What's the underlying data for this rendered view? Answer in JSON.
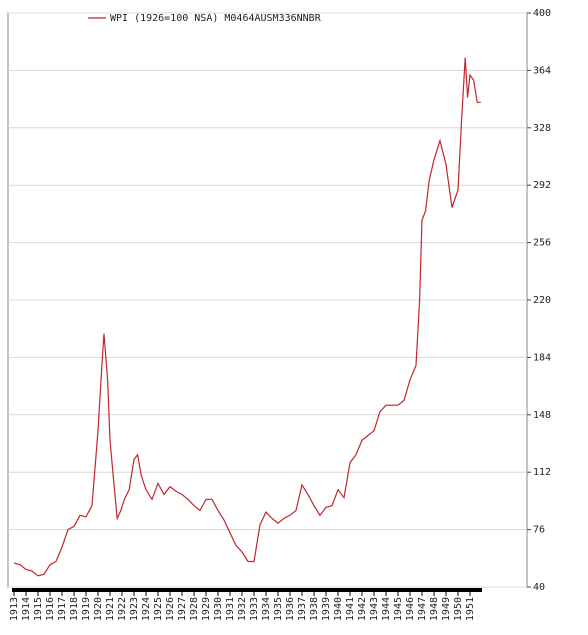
{
  "chart_data": {
    "type": "line",
    "series": [
      {
        "name": "WPI (1926=100 NSA) M0464AUSM336NNBR",
        "color": "#c0262b",
        "x": [
          1913.0,
          1913.5,
          1914.0,
          1914.5,
          1915.0,
          1915.5,
          1916.0,
          1916.5,
          1917.0,
          1917.5,
          1918.0,
          1918.5,
          1919.0,
          1919.5,
          1920.0,
          1920.3,
          1920.5,
          1920.8,
          1921.0,
          1921.3,
          1921.6,
          1921.9,
          1922.2,
          1922.6,
          1923.0,
          1923.3,
          1923.6,
          1924.0,
          1924.5,
          1925.0,
          1925.5,
          1926.0,
          1926.5,
          1927.0,
          1927.5,
          1928.0,
          1928.5,
          1929.0,
          1929.5,
          1930.0,
          1930.5,
          1931.0,
          1931.5,
          1932.0,
          1932.5,
          1933.0,
          1933.5,
          1934.0,
          1934.5,
          1935.0,
          1935.5,
          1936.0,
          1936.5,
          1937.0,
          1937.5,
          1938.0,
          1938.5,
          1939.0,
          1939.5,
          1940.0,
          1940.5,
          1941.0,
          1941.5,
          1942.0,
          1942.5,
          1943.0,
          1943.5,
          1944.0,
          1944.5,
          1945.0,
          1945.5,
          1946.0,
          1946.5,
          1946.8,
          1947.0,
          1947.3,
          1947.6,
          1948.0,
          1948.5,
          1949.0,
          1949.5,
          1950.0,
          1950.3,
          1950.6,
          1950.8,
          1951.0,
          1951.3,
          1951.6,
          1951.9
        ],
        "values": [
          55,
          54,
          51,
          50,
          47,
          48,
          54,
          56,
          65,
          76,
          78,
          85,
          84,
          91,
          138,
          176,
          199,
          170,
          132,
          107,
          83,
          88,
          95,
          101,
          120,
          123,
          110,
          101,
          95,
          105,
          98,
          103,
          100,
          98,
          95,
          91,
          88,
          95,
          95,
          88,
          82,
          74,
          66,
          62,
          56,
          56,
          79,
          87,
          83,
          80,
          83,
          85,
          88,
          104,
          98,
          91,
          85,
          90,
          91,
          101,
          96,
          118,
          123,
          132,
          135,
          138,
          150,
          154,
          154,
          154,
          157,
          170,
          179,
          220,
          270,
          276,
          295,
          308,
          320,
          305,
          278,
          289,
          333,
          372,
          347,
          361,
          358,
          344,
          344
        ]
      }
    ],
    "xlim": [
      1912.5,
      1955.75
    ],
    "xticks": [
      1913,
      1914,
      1915,
      1916,
      1917,
      1918,
      1919,
      1920,
      1921,
      1922,
      1923,
      1924,
      1925,
      1926,
      1927,
      1928,
      1929,
      1930,
      1931,
      1932,
      1933,
      1934,
      1935,
      1936,
      1937,
      1938,
      1939,
      1940,
      1941,
      1942,
      1943,
      1944,
      1945,
      1946,
      1947,
      1948,
      1949,
      1950,
      1951
    ],
    "ylim": [
      40,
      400
    ],
    "yticks": [
      40,
      76,
      112,
      148,
      184,
      220,
      256,
      292,
      328,
      364,
      400
    ],
    "grid": true
  }
}
